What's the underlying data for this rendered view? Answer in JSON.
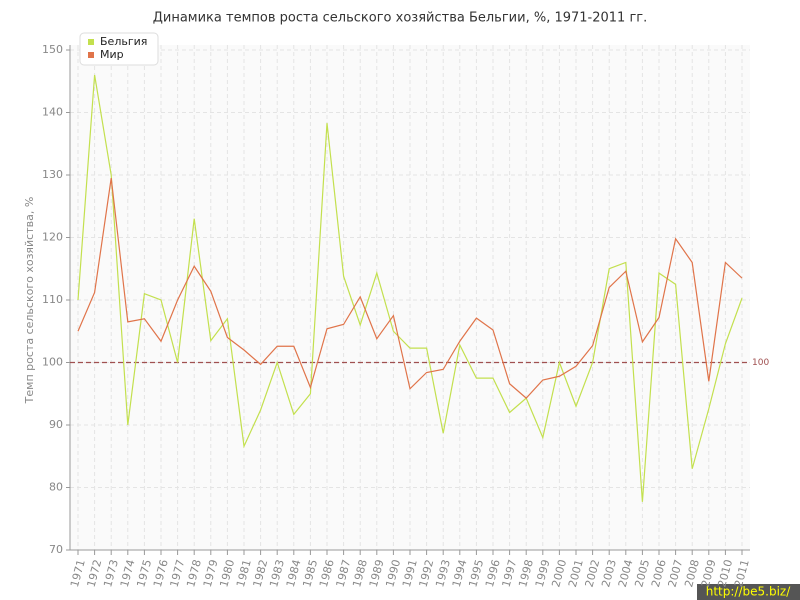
{
  "chart_data": {
    "type": "line",
    "title": "Динамика темпов роста сельского хозяйства Бельгии, %, 1971-2011 гг.",
    "y_label": "Темп роста сельского хозяйства, %",
    "categories": [
      "1971",
      "1972",
      "1973",
      "1974",
      "1975",
      "1976",
      "1977",
      "1978",
      "1979",
      "1980",
      "1981",
      "1982",
      "1983",
      "1984",
      "1985",
      "1986",
      "1987",
      "1988",
      "1989",
      "1990",
      "1991",
      "1992",
      "1993",
      "1994",
      "1995",
      "1996",
      "1997",
      "1998",
      "1999",
      "2000",
      "2001",
      "2002",
      "2003",
      "2004",
      "2005",
      "2006",
      "2007",
      "2008",
      "2009",
      "2010",
      "2011"
    ],
    "series": [
      {
        "name": "Бельгия",
        "color": "#c3e04e",
        "values": [
          110,
          146,
          130,
          90,
          111,
          110,
          100,
          123,
          103.5,
          107,
          86.6,
          92.4,
          100,
          91.7,
          95,
          138.3,
          113.8,
          106,
          114.3,
          105,
          102.3,
          102.3,
          88.7,
          102.8,
          97.5,
          97.5,
          92,
          94.3,
          88,
          100,
          93,
          100,
          115,
          116,
          77.7,
          114.3,
          112.5,
          83,
          92.6,
          103,
          110.3
        ]
      },
      {
        "name": "Мир",
        "color": "#e0744a",
        "values": [
          105,
          111.2,
          129.5,
          106.5,
          107,
          103.4,
          110,
          115.4,
          111.4,
          104,
          102,
          99.7,
          102.6,
          102.6,
          96,
          105.4,
          106.1,
          110.5,
          103.8,
          107.5,
          95.8,
          98.4,
          98.9,
          103.4,
          107.1,
          105.2,
          96.6,
          94.3,
          97.2,
          97.8,
          99.4,
          102.7,
          112,
          114.6,
          103.3,
          107.2,
          119.8,
          116,
          97,
          116,
          113.5
        ]
      }
    ],
    "reference_line": 100,
    "ylim": [
      70,
      150
    ],
    "yticks": [
      70,
      80,
      90,
      100,
      110,
      120,
      130,
      140,
      150
    ],
    "grid": true,
    "legend": "top-left",
    "watermark": "http://be5.biz/"
  }
}
